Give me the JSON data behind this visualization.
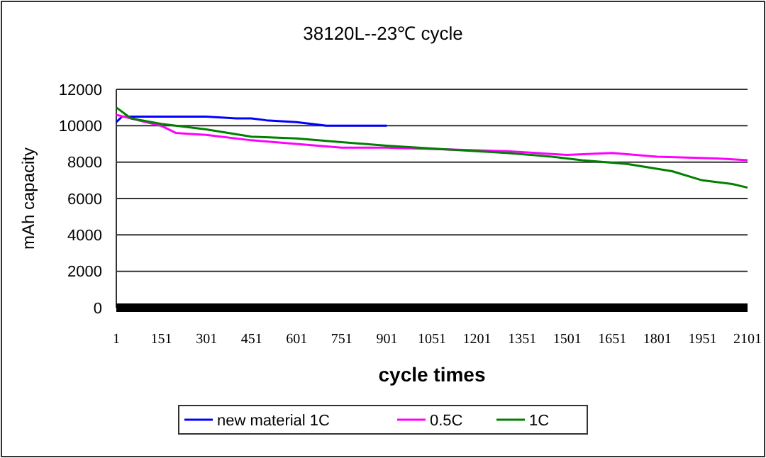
{
  "chart_data": {
    "type": "line",
    "title": "38120L--23℃ cycle",
    "xlabel": "cycle times",
    "ylabel": "mAh capacity",
    "xlim": [
      1,
      2101
    ],
    "xticks": [
      1,
      151,
      301,
      451,
      601,
      751,
      901,
      1051,
      1201,
      1351,
      1501,
      1651,
      1801,
      1951,
      2101
    ],
    "ylim": [
      0,
      12000
    ],
    "yticks": [
      0,
      2000,
      4000,
      6000,
      8000,
      10000,
      12000
    ],
    "grid": "y",
    "legend": "bottom",
    "line_style": "solid",
    "series": [
      {
        "name": "new material 1C",
        "color": "#0000ff",
        "x": [
          1,
          20,
          100,
          200,
          300,
          400,
          450,
          500,
          600,
          650,
          700,
          800,
          901
        ],
        "values": [
          10200,
          10500,
          10500,
          10500,
          10500,
          10400,
          10400,
          10300,
          10200,
          10100,
          10000,
          10000,
          10000
        ]
      },
      {
        "name": "0.5C",
        "color": "#ff00ff",
        "x": [
          1,
          50,
          100,
          150,
          200,
          300,
          450,
          600,
          750,
          900,
          1100,
          1300,
          1500,
          1650,
          1800,
          2000,
          2101
        ],
        "values": [
          10600,
          10400,
          10200,
          10000,
          9600,
          9500,
          9200,
          9000,
          8800,
          8800,
          8700,
          8600,
          8400,
          8500,
          8300,
          8200,
          8100
        ]
      },
      {
        "name": "1C",
        "color": "#008000",
        "x": [
          1,
          50,
          150,
          300,
          450,
          600,
          750,
          900,
          1100,
          1300,
          1450,
          1550,
          1700,
          1850,
          1950,
          2050,
          2101
        ],
        "values": [
          11000,
          10400,
          10100,
          9800,
          9400,
          9300,
          9100,
          8900,
          8700,
          8500,
          8300,
          8100,
          7900,
          7500,
          7000,
          6800,
          6600
        ]
      }
    ]
  }
}
